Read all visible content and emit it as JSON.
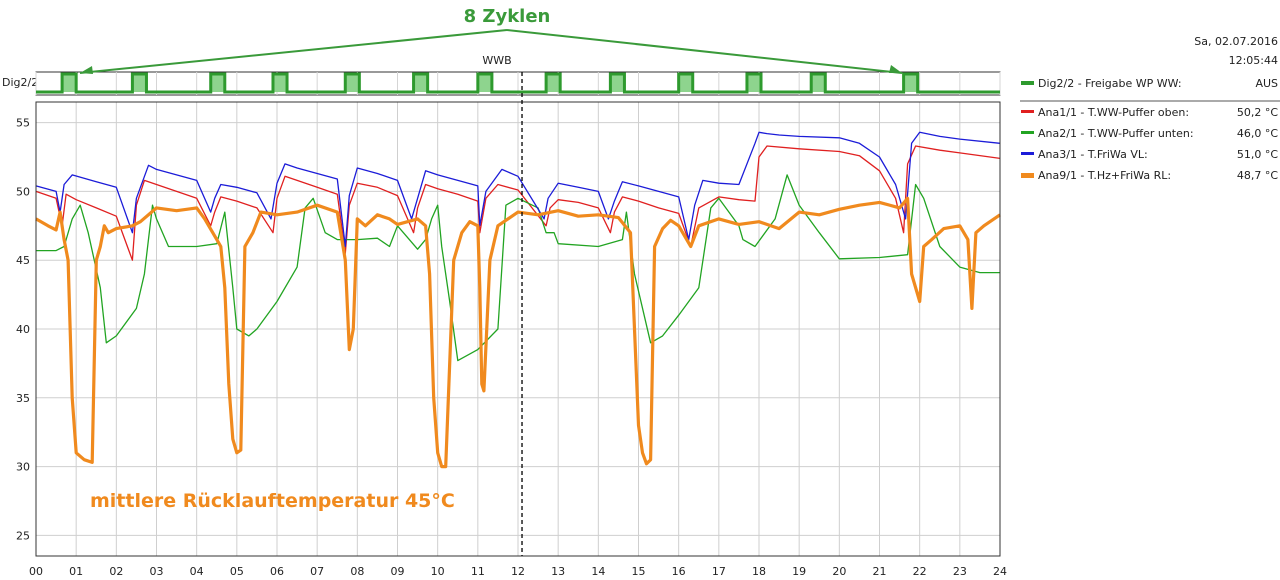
{
  "header": {
    "date": "Sa, 02.07.2016",
    "time": "12:05:44"
  },
  "annotations": {
    "cycles": "8 Zyklen",
    "return_temp": "mittlere Rücklauftemperatur 45°C",
    "now_marker": "WWB"
  },
  "digital": {
    "axis_label": "Dig2/2",
    "pulse_starts": [
      0.65,
      2.4,
      4.35,
      5.9,
      7.7,
      9.4,
      11.0,
      12.7,
      14.3,
      16.0,
      17.7,
      19.3,
      21.6
    ],
    "pulse_width": 0.35
  },
  "legend": {
    "digital": {
      "label": "Dig2/2 - Freigabe WP WW:",
      "value": "AUS",
      "color": "#2e9a2e"
    },
    "series": [
      {
        "label": "Ana1/1 - T.WW-Puffer oben:",
        "value": "50,2 °C",
        "color": "#e02020"
      },
      {
        "label": "Ana2/1 - T.WW-Puffer unten:",
        "value": "46,0 °C",
        "color": "#22a422"
      },
      {
        "label": "Ana3/1 - T.FriWa VL:",
        "value": "51,0 °C",
        "color": "#1c1cd8"
      },
      {
        "label": "Ana9/1 - T.Hz+FriWa RL:",
        "value": "48,7 °C",
        "color": "#f08a1e"
      }
    ]
  },
  "chart_data": {
    "type": "line",
    "xlim": [
      0,
      24
    ],
    "ylim": [
      23.5,
      56.5
    ],
    "x_ticks": [
      "00",
      "01",
      "02",
      "03",
      "04",
      "05",
      "06",
      "07",
      "08",
      "09",
      "10",
      "11",
      "12",
      "13",
      "14",
      "15",
      "16",
      "17",
      "18",
      "19",
      "20",
      "21",
      "22",
      "23",
      "24"
    ],
    "y_ticks": [
      25,
      30,
      35,
      40,
      45,
      50,
      55
    ],
    "grid": true,
    "now_x": 12.1,
    "series": [
      {
        "name": "Ana1/1 - T.WW-Puffer oben",
        "x": [
          0,
          0.5,
          0.65,
          0.75,
          1.0,
          1.5,
          2.0,
          2.4,
          2.5,
          2.7,
          3.0,
          3.5,
          4.0,
          4.35,
          4.45,
          4.6,
          5.0,
          5.5,
          5.9,
          6.0,
          6.2,
          6.5,
          7.0,
          7.5,
          7.7,
          7.8,
          8.0,
          8.5,
          9.0,
          9.4,
          9.5,
          9.7,
          10.0,
          10.5,
          11.0,
          11.05,
          11.2,
          11.5,
          12.0,
          12.7,
          12.8,
          13.0,
          13.5,
          14.0,
          14.3,
          14.4,
          14.6,
          15.0,
          15.5,
          16.0,
          16.3,
          16.5,
          17.0,
          17.5,
          17.9,
          18.0,
          18.2,
          19.0,
          20.0,
          20.5,
          21.0,
          21.4,
          21.6,
          21.7,
          21.9,
          22.5,
          23.0,
          24.0
        ],
        "y": [
          50,
          49.5,
          47.5,
          49.8,
          49.4,
          48.8,
          48.2,
          45,
          49.0,
          50.8,
          50.5,
          50.0,
          49.5,
          47.5,
          48.5,
          49.6,
          49.3,
          48.8,
          47,
          49.5,
          51.1,
          50.8,
          50.3,
          49.8,
          45.5,
          49.0,
          50.6,
          50.3,
          49.7,
          47,
          48.8,
          50.5,
          50.2,
          49.8,
          49.3,
          47,
          49.5,
          50.5,
          50.1,
          47.5,
          48.8,
          49.4,
          49.2,
          48.8,
          47,
          48.5,
          49.6,
          49.3,
          48.8,
          48.4,
          46,
          48.8,
          49.6,
          49.4,
          49.3,
          52.5,
          53.3,
          53.1,
          52.9,
          52.6,
          51.5,
          49.5,
          47,
          52,
          53.3,
          53.0,
          52.8,
          52.4
        ]
      },
      {
        "name": "Ana2/1 - T.WW-Puffer unten",
        "x": [
          0,
          0.5,
          0.7,
          0.9,
          1.1,
          1.3,
          1.6,
          1.75,
          2.0,
          2.5,
          2.7,
          2.9,
          3.0,
          3.3,
          4.0,
          4.5,
          4.7,
          4.9,
          5.0,
          5.3,
          5.5,
          6.0,
          6.5,
          6.7,
          6.9,
          7.2,
          7.5,
          8.0,
          8.5,
          8.8,
          9.0,
          9.5,
          9.7,
          9.85,
          10.0,
          10.1,
          10.3,
          10.5,
          11.0,
          11.5,
          11.7,
          12.0,
          12.5,
          12.7,
          12.9,
          13.0,
          14.0,
          14.6,
          14.7,
          14.9,
          15.3,
          15.6,
          16.0,
          16.5,
          16.8,
          17.0,
          17.5,
          17.6,
          17.9,
          18.4,
          18.7,
          19.0,
          19.5,
          20.0,
          21.0,
          21.7,
          21.9,
          22.1,
          22.5,
          23.0,
          23.5,
          24.0
        ],
        "y": [
          45.7,
          45.7,
          46,
          48,
          49,
          47,
          43,
          39,
          39.5,
          41.5,
          44,
          49,
          48,
          46,
          46,
          46.2,
          48.5,
          43,
          40,
          39.5,
          40,
          42,
          44.5,
          48.8,
          49.5,
          47,
          46.5,
          46.5,
          46.6,
          46,
          47.5,
          45.8,
          46.5,
          48,
          49,
          46,
          42,
          37.7,
          38.5,
          40,
          49,
          49.5,
          48.8,
          47,
          47,
          46.2,
          46,
          46.5,
          48.5,
          44,
          39,
          39.5,
          41,
          43,
          48.8,
          49.5,
          47.5,
          46.5,
          46,
          48,
          51.2,
          49,
          47,
          45.1,
          45.2,
          45.4,
          50.5,
          49.5,
          46,
          44.5,
          44.1,
          44.1
        ]
      },
      {
        "name": "Ana3/1 - T.FriWa VL",
        "x": [
          0,
          0.5,
          0.6,
          0.7,
          0.9,
          1.5,
          2.0,
          2.4,
          2.5,
          2.8,
          3.0,
          3.5,
          4.0,
          4.35,
          4.45,
          4.6,
          5.0,
          5.5,
          5.85,
          6.0,
          6.2,
          6.5,
          7.0,
          7.5,
          7.7,
          7.8,
          8.0,
          8.5,
          9.0,
          9.35,
          9.5,
          9.7,
          10.0,
          10.5,
          11.0,
          11.05,
          11.2,
          11.6,
          12.0,
          12.65,
          12.75,
          13.0,
          13.5,
          14.0,
          14.25,
          14.4,
          14.6,
          15.0,
          15.5,
          16.0,
          16.25,
          16.4,
          16.6,
          17.0,
          17.5,
          17.9,
          18.0,
          18.2,
          18.5,
          19.0,
          20.0,
          20.5,
          21.0,
          21.4,
          21.65,
          21.8,
          22.0,
          22.5,
          23.0,
          24.0
        ],
        "y": [
          50.4,
          50,
          48.5,
          50.5,
          51.2,
          50.7,
          50.3,
          47,
          49.5,
          51.9,
          51.6,
          51.2,
          50.8,
          48.5,
          49.5,
          50.5,
          50.3,
          49.9,
          48,
          50.6,
          52.0,
          51.7,
          51.3,
          50.9,
          46,
          49.7,
          51.7,
          51.3,
          50.8,
          48,
          49.5,
          51.5,
          51.2,
          50.8,
          50.4,
          47.5,
          50,
          51.6,
          51.1,
          48,
          49.5,
          50.6,
          50.3,
          50.0,
          48,
          49.3,
          50.7,
          50.4,
          50.0,
          49.6,
          46.5,
          49,
          50.8,
          50.6,
          50.5,
          53.5,
          54.3,
          54.2,
          54.1,
          54.0,
          53.9,
          53.5,
          52.5,
          50.5,
          48,
          53.5,
          54.3,
          54.0,
          53.8,
          53.5
        ]
      },
      {
        "name": "Ana9/1 - T.Hz+FriWa RL",
        "x": [
          0,
          0.3,
          0.5,
          0.6,
          0.7,
          0.8,
          0.9,
          1.0,
          1.2,
          1.4,
          1.5,
          1.6,
          1.7,
          1.8,
          2.0,
          2.4,
          2.6,
          3.0,
          3.5,
          4.0,
          4.2,
          4.5,
          4.6,
          4.7,
          4.8,
          4.9,
          5.0,
          5.1,
          5.2,
          5.4,
          5.6,
          6.0,
          6.5,
          7.0,
          7.5,
          7.7,
          7.8,
          7.9,
          8.0,
          8.2,
          8.5,
          8.8,
          9.0,
          9.5,
          9.7,
          9.8,
          9.9,
          10.0,
          10.1,
          10.2,
          10.4,
          10.6,
          10.8,
          11.0,
          11.05,
          11.1,
          11.15,
          11.3,
          11.5,
          12.0,
          12.5,
          13.0,
          13.5,
          14.0,
          14.5,
          14.8,
          14.9,
          15.0,
          15.1,
          15.2,
          15.3,
          15.4,
          15.6,
          15.8,
          16.0,
          16.3,
          16.5,
          17.0,
          17.5,
          18.0,
          18.5,
          19.0,
          19.5,
          20.0,
          20.5,
          21.0,
          21.5,
          21.7,
          21.8,
          22.0,
          22.1,
          22.3,
          22.6,
          23.0,
          23.2,
          23.3,
          23.4,
          23.6,
          24.0
        ],
        "y": [
          48,
          47.5,
          47.2,
          48.5,
          46.5,
          45,
          35,
          31,
          30.5,
          30.3,
          45,
          46,
          47.5,
          47,
          47.3,
          47.5,
          47.8,
          48.8,
          48.6,
          48.8,
          48,
          46.5,
          46,
          43,
          36,
          32,
          31,
          31.2,
          46,
          47,
          48.5,
          48.3,
          48.5,
          49,
          48.5,
          45,
          38.5,
          40,
          48,
          47.5,
          48.3,
          48,
          47.6,
          48,
          47.5,
          44,
          35,
          31,
          30,
          30,
          45,
          47,
          47.8,
          47.5,
          43,
          36,
          35.5,
          45,
          47.5,
          48.5,
          48.3,
          48.6,
          48.2,
          48.3,
          48.1,
          47,
          40,
          33,
          31,
          30.2,
          30.5,
          46,
          47.3,
          47.9,
          47.5,
          46,
          47.5,
          48,
          47.6,
          47.8,
          47.3,
          48.5,
          48.3,
          48.7,
          49,
          49.2,
          48.8,
          49.5,
          44,
          42,
          46,
          46.5,
          47.3,
          47.5,
          46.5,
          41.5,
          47,
          47.5,
          48.3
        ]
      }
    ]
  }
}
